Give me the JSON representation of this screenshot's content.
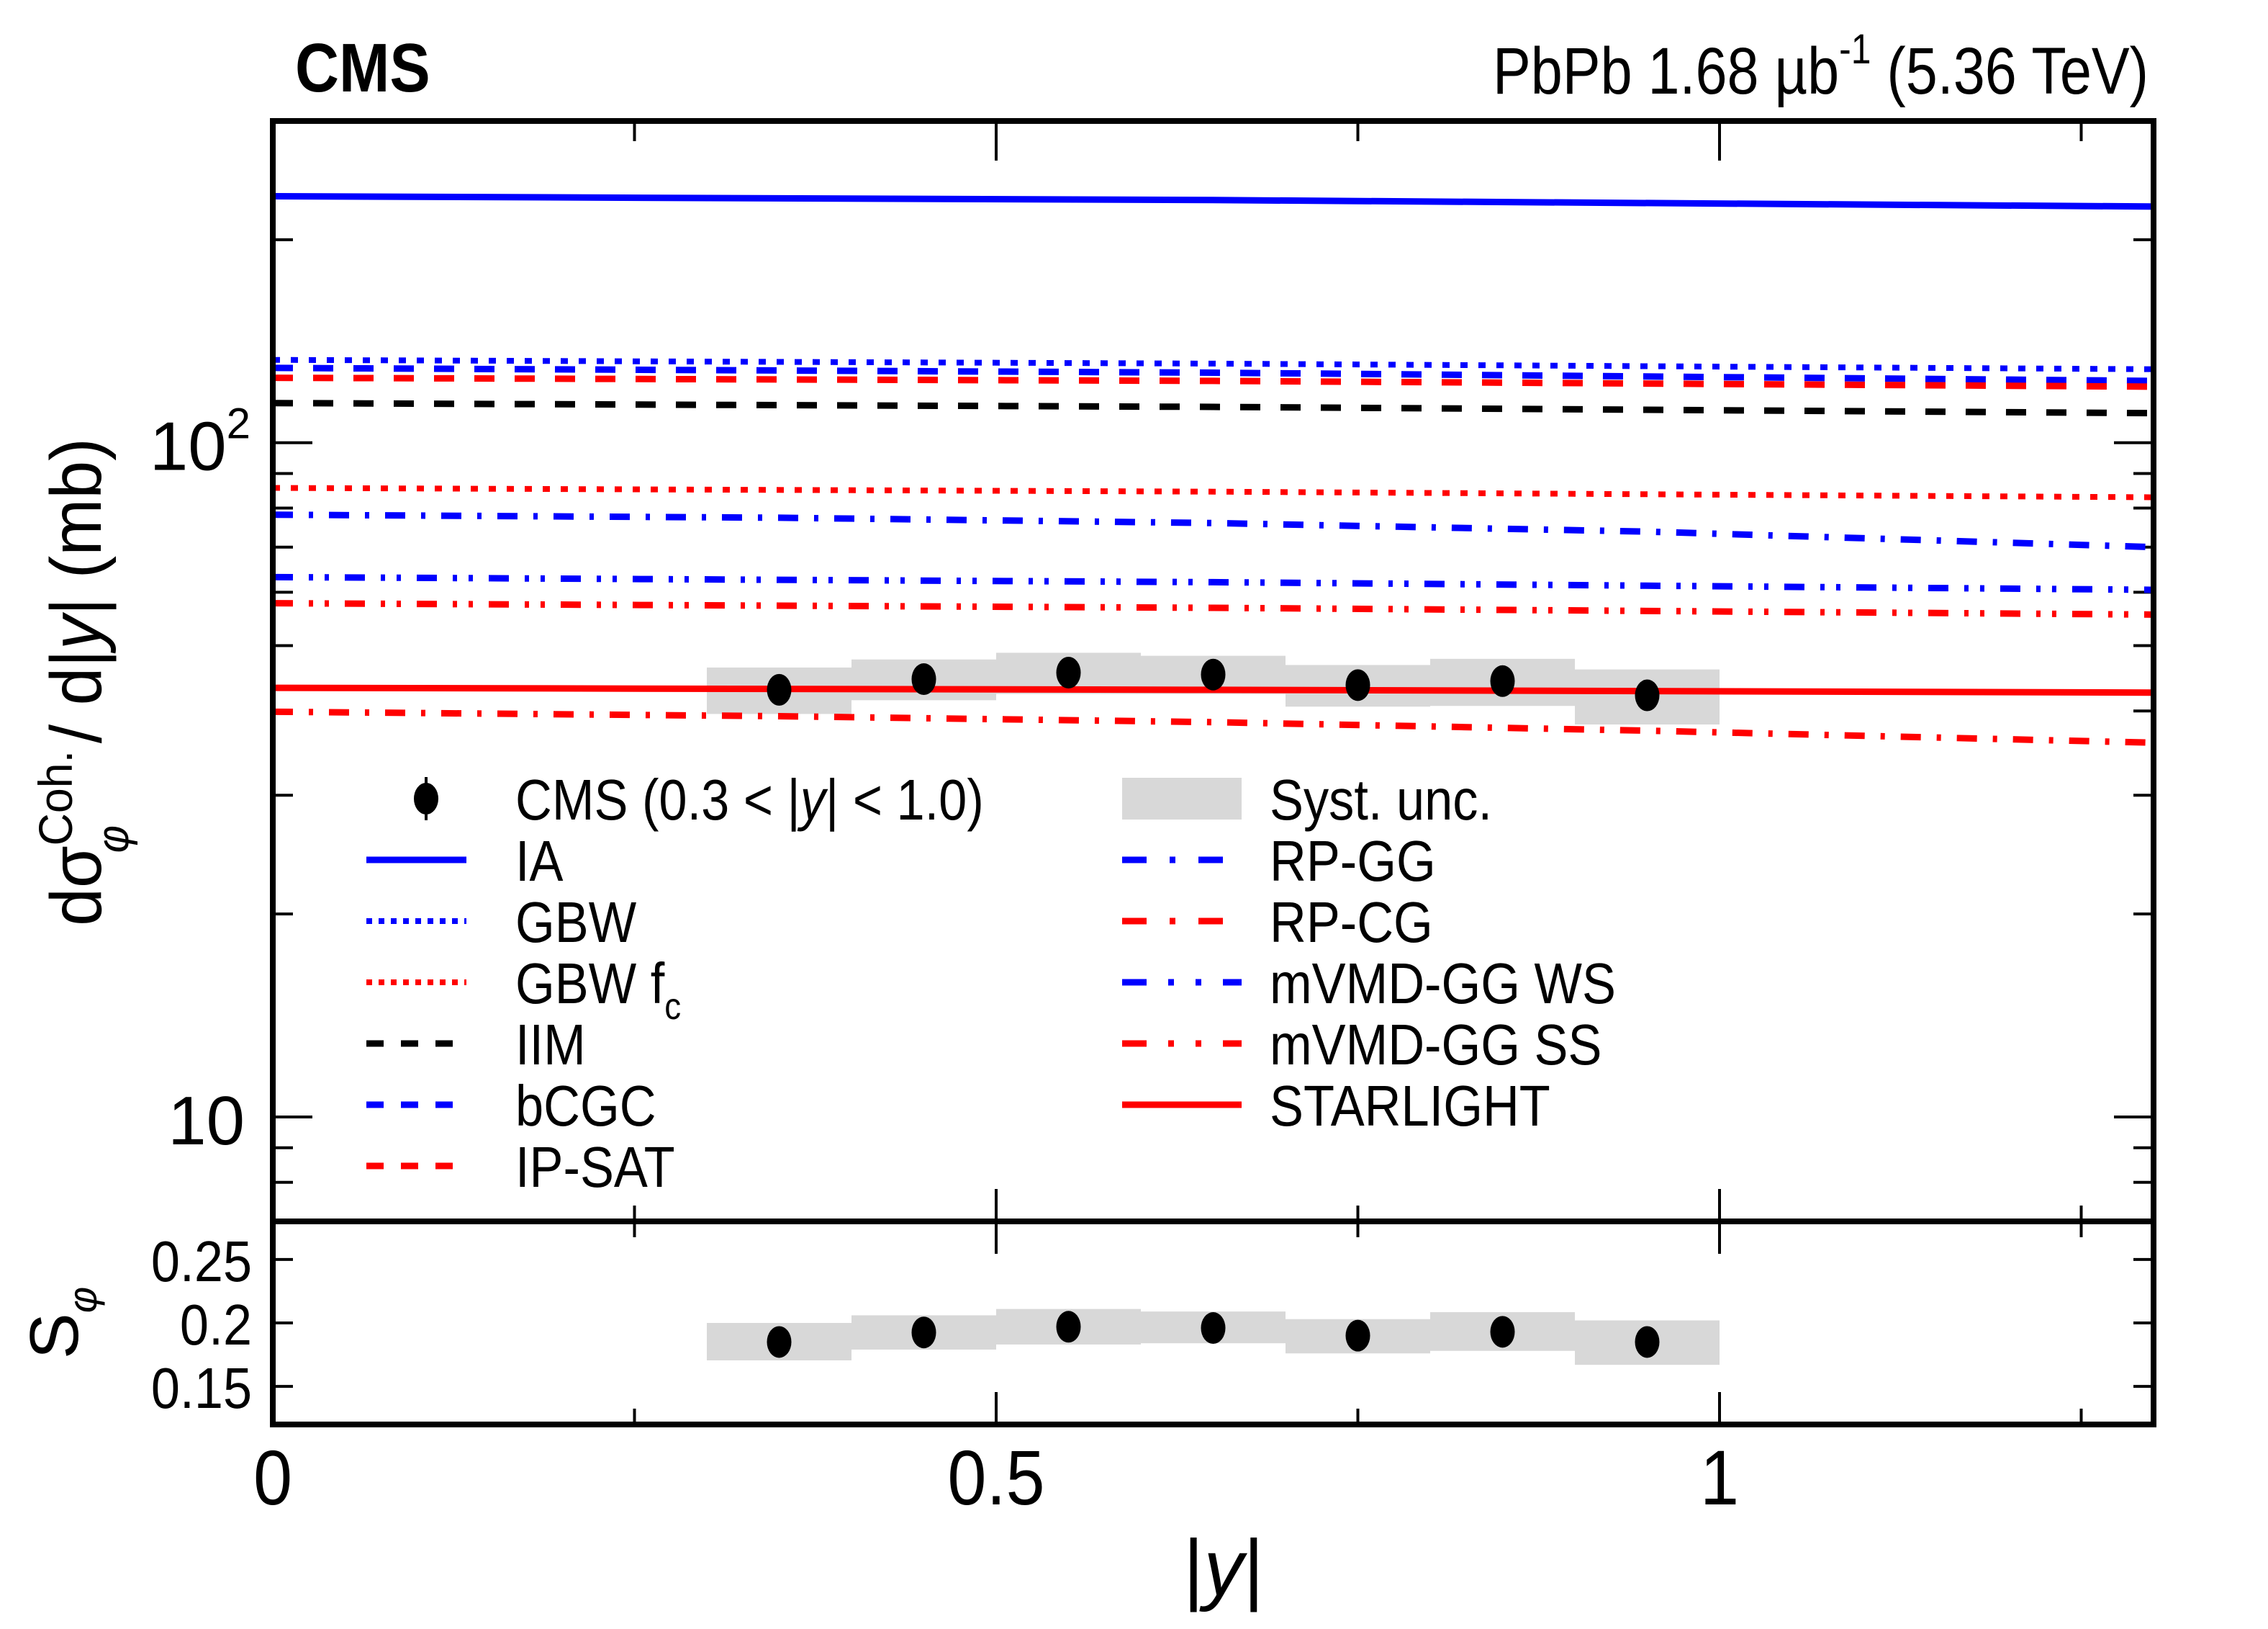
{
  "header": {
    "experiment": "CMS",
    "lumi_prefix": "PbPb 1.68 ",
    "lumi_unit": "µb",
    "lumi_exp": "-1",
    "energy": " (5.36 TeV)"
  },
  "colors": {
    "blue": "#0000ff",
    "red": "#ff0000",
    "black": "#000000",
    "syst": "#cccccc"
  },
  "chart_data": {
    "type": "line",
    "title": "",
    "xlabel": "|y|",
    "ylabel_parts": {
      "prefix": "dσ",
      "sup": "Coh.",
      "sub": "φ",
      "suffix": " / d|",
      "var": "y",
      "end": "| (mb)"
    },
    "ratio_ylabel": {
      "main": "S",
      "sub": "φ"
    },
    "xlim": [
      0,
      1.3
    ],
    "ylim": [
      7,
      300
    ],
    "yscale": "log",
    "ratio_ylim": [
      0.12,
      0.28
    ],
    "x_ticks": [
      {
        "v": 0,
        "label": "0"
      },
      {
        "v": 0.5,
        "label": "0.5"
      },
      {
        "v": 1,
        "label": "1"
      }
    ],
    "x_minor_ticks": [
      0.25,
      0.75,
      1.25
    ],
    "y_ticks": [
      {
        "v": 10,
        "label": "10",
        "exp": ""
      },
      {
        "v": 100,
        "label": "10",
        "exp": "2"
      }
    ],
    "y_minor_ticks": [
      8,
      9,
      20,
      30,
      40,
      50,
      60,
      70,
      80,
      90,
      200
    ],
    "ratio_ticks": [
      {
        "v": 0.15,
        "label": "0.15"
      },
      {
        "v": 0.2,
        "label": "0.2"
      },
      {
        "v": 0.25,
        "label": "0.25"
      }
    ],
    "data": {
      "name": "CMS (0.3 < |y| < 1.0)",
      "x": [
        0.35,
        0.45,
        0.55,
        0.65,
        0.75,
        0.85,
        0.95
      ],
      "bin_low": [
        0.3,
        0.4,
        0.5,
        0.6,
        0.7,
        0.8,
        0.9
      ],
      "bin_high": [
        0.4,
        0.5,
        0.6,
        0.7,
        0.8,
        0.9,
        1.0
      ],
      "y": [
        43.0,
        44.6,
        45.6,
        45.3,
        43.7,
        44.3,
        42.2
      ],
      "syst_low": [
        39.6,
        41.5,
        42.4,
        42.4,
        40.6,
        40.7,
        38.2
      ],
      "syst_high": [
        46.4,
        47.7,
        48.8,
        48.3,
        46.8,
        47.8,
        46.1
      ],
      "ratio": [
        0.185,
        0.1925,
        0.197,
        0.196,
        0.19,
        0.193,
        0.185
      ],
      "ratio_syst_low": [
        0.1705,
        0.179,
        0.183,
        0.184,
        0.176,
        0.178,
        0.167
      ],
      "ratio_syst_high": [
        0.2,
        0.206,
        0.211,
        0.209,
        0.203,
        0.2085,
        0.202
      ]
    },
    "series": [
      {
        "name": "IA",
        "color": "#0000ff",
        "style": "solid",
        "x": [
          0,
          0.65,
          1.3
        ],
        "values": [
          232,
          229,
          224
        ]
      },
      {
        "name": "GBW",
        "color": "#0000ff",
        "style": "dotted",
        "x": [
          0,
          0.65,
          1.3
        ],
        "values": [
          132.7,
          131,
          128.5
        ]
      },
      {
        "name": "GBW f",
        "sub": "c",
        "color": "#ff0000",
        "style": "dotted",
        "x": [
          0,
          0.65,
          1.3
        ],
        "values": [
          85.7,
          84.6,
          83.0
        ]
      },
      {
        "name": "IIM",
        "color": "#000000",
        "style": "dashed",
        "x": [
          0,
          0.65,
          1.3
        ],
        "values": [
          114.5,
          113,
          110.6
        ]
      },
      {
        "name": "bCGC",
        "color": "#0000ff",
        "style": "dashed",
        "x": [
          0,
          0.65,
          1.3
        ],
        "values": [
          129.1,
          127,
          123.5
        ]
      },
      {
        "name": "IP-SAT",
        "color": "#ff0000",
        "style": "dashed",
        "x": [
          0,
          0.65,
          1.3
        ],
        "values": [
          124.8,
          123.5,
          121.1
        ]
      },
      {
        "name": "RP-GG",
        "color": "#0000ff",
        "style": "dashdot",
        "x": [
          0,
          0.35,
          0.65,
          0.95,
          1.3
        ],
        "values": [
          78.2,
          77.4,
          76.0,
          73.8,
          70.0
        ]
      },
      {
        "name": "RP-CG",
        "color": "#ff0000",
        "style": "dashdot",
        "x": [
          0,
          0.35,
          0.65,
          0.95,
          1.3
        ],
        "values": [
          39.9,
          39.3,
          38.5,
          37.4,
          35.9
        ]
      },
      {
        "name": "mVMD-GG WS",
        "color": "#0000ff",
        "style": "dashdotdot",
        "x": [
          0,
          0.65,
          1.3
        ],
        "values": [
          63.2,
          62.1,
          60.5
        ]
      },
      {
        "name": "mVMD-GG SS",
        "color": "#ff0000",
        "style": "dashdotdot",
        "x": [
          0,
          0.65,
          1.3
        ],
        "values": [
          57.8,
          56.9,
          55.6
        ]
      },
      {
        "name": "STARLIGHT",
        "color": "#ff0000",
        "style": "solid",
        "x": [
          0,
          0.65,
          1.3
        ],
        "values": [
          43.3,
          43.0,
          42.6
        ]
      }
    ],
    "legend": {
      "placement": "lower-left",
      "col1": [
        "CMS (0.3 < |y| < 1.0)",
        "IA",
        "GBW",
        "GBW f",
        "IIM",
        "bCGC",
        "IP-SAT"
      ],
      "col2": [
        "Syst. unc.",
        "RP-GG",
        "RP-CG",
        "mVMD-GG WS",
        "mVMD-GG SS",
        "STARLIGHT"
      ],
      "data_label_parts": {
        "pre": "CMS (0.3 < |",
        "var": "y",
        "post": "| < 1.0)"
      },
      "gbwfc_sub": "c"
    }
  }
}
